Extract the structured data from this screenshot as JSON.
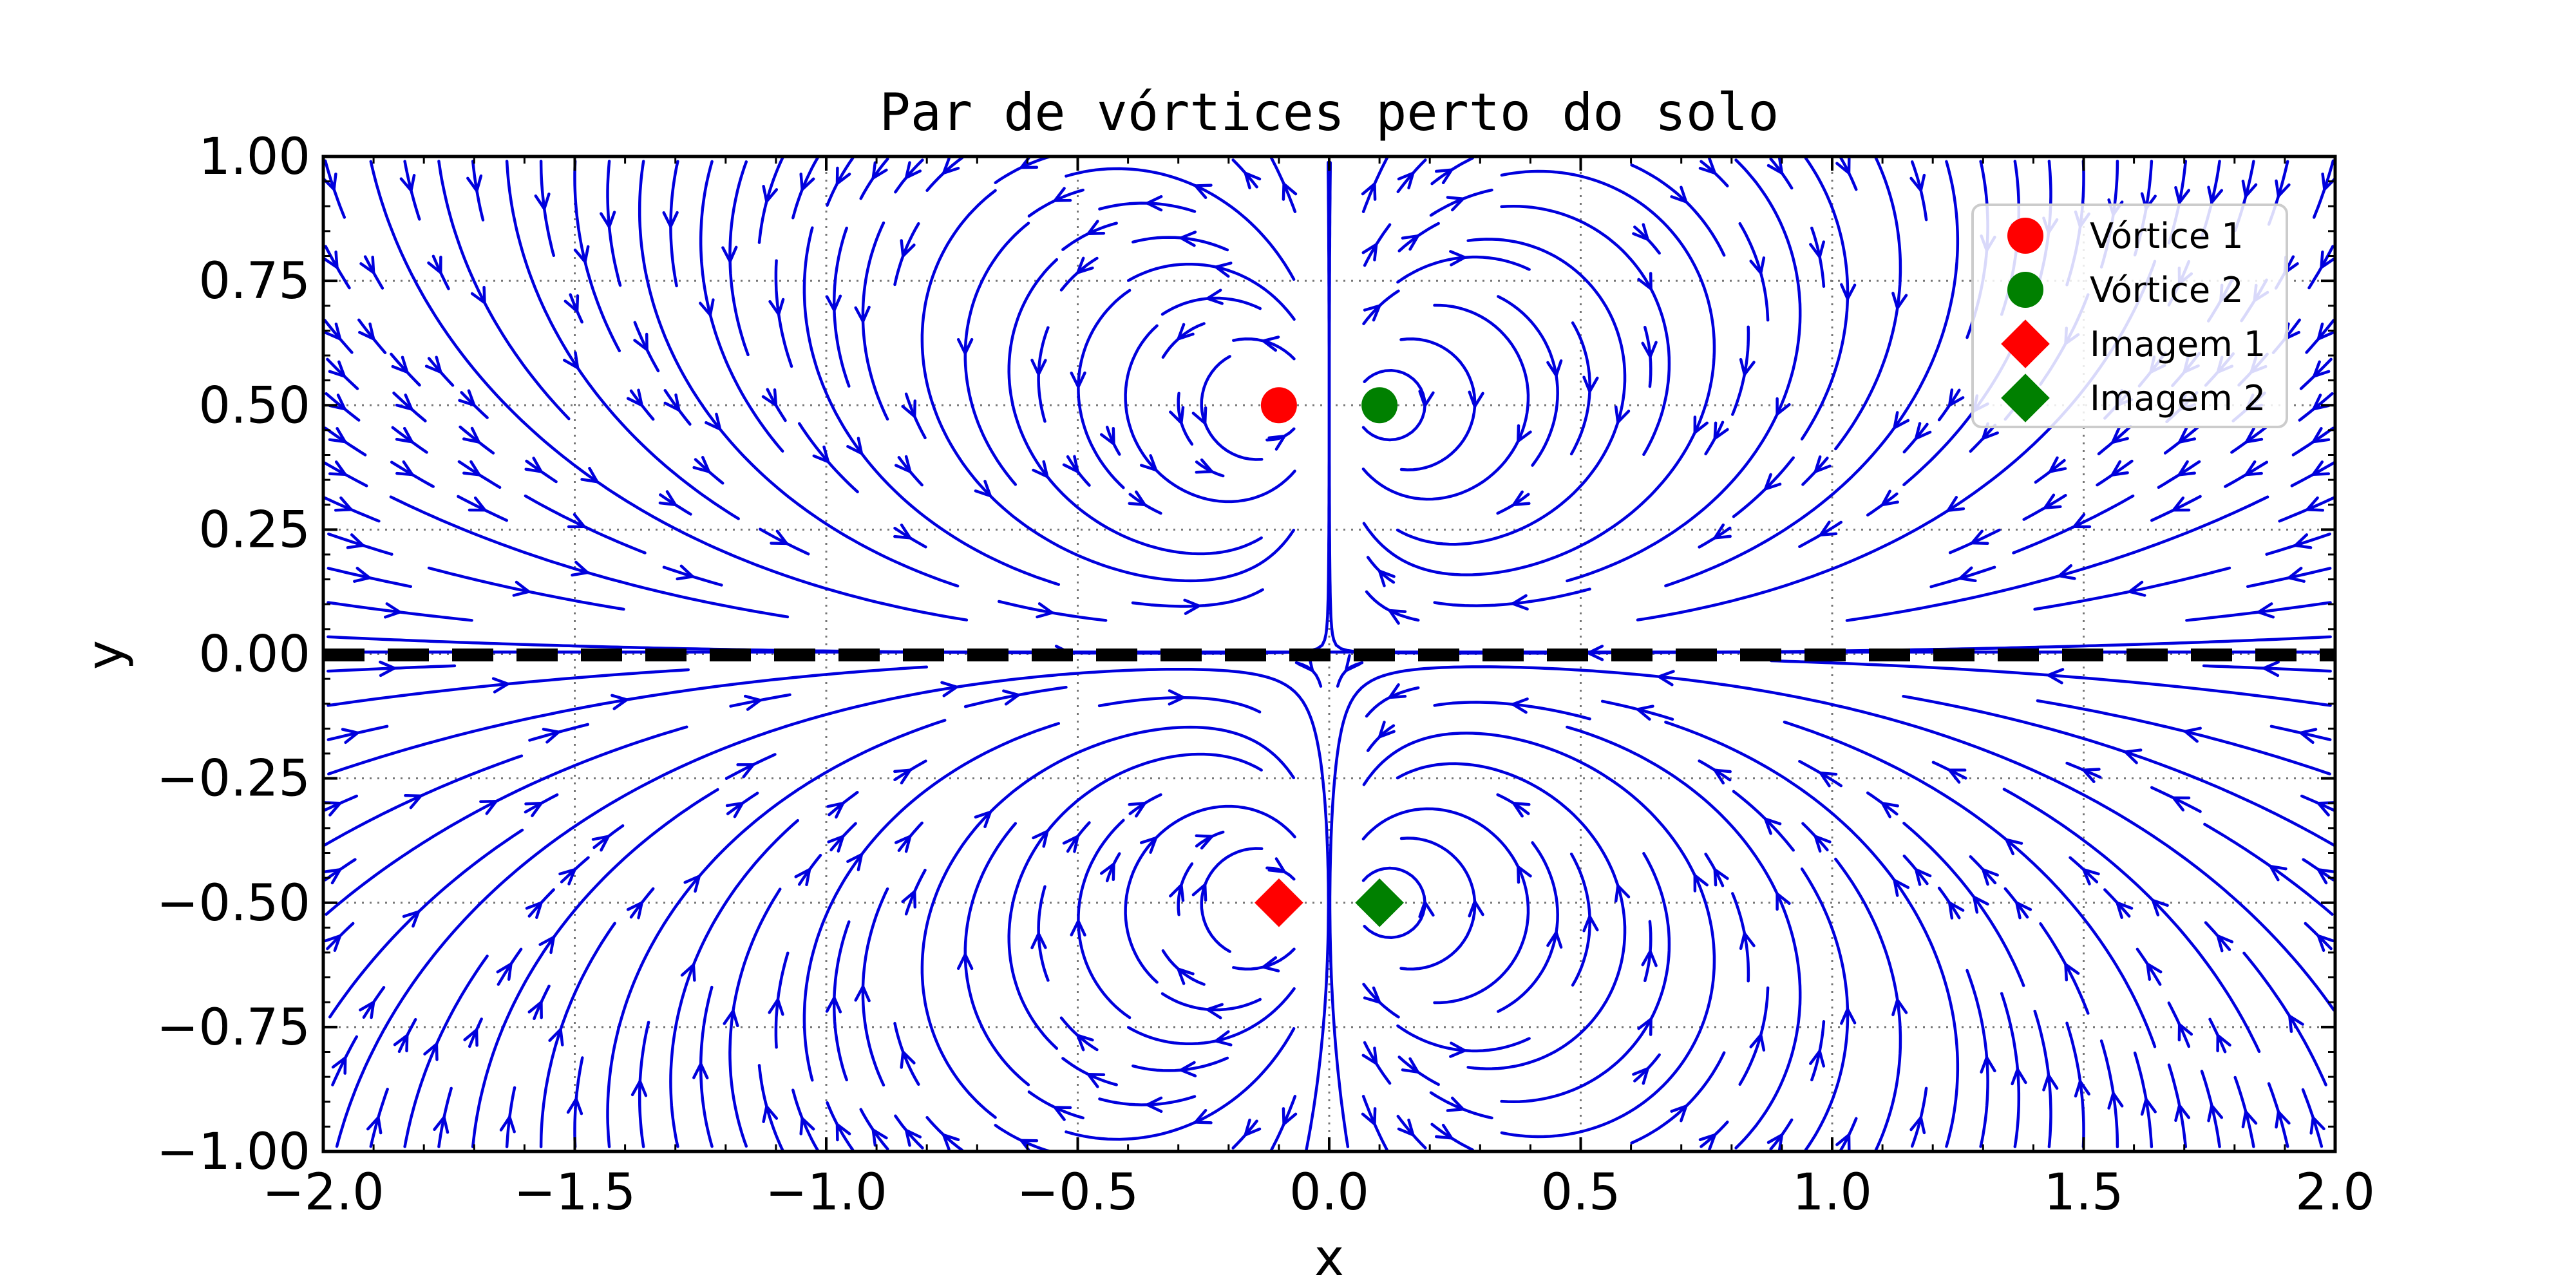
{
  "chart_data": {
    "type": "streamplot",
    "title": "Par de vórtices perto do solo",
    "xlabel": "x",
    "ylabel": "y",
    "xlim": [
      -2.0,
      2.0
    ],
    "ylim": [
      -1.0,
      1.0
    ],
    "x_ticks": [
      "−2.0",
      "−1.5",
      "−1.0",
      "−0.5",
      "0.0",
      "0.5",
      "1.0",
      "1.5",
      "2.0"
    ],
    "y_ticks": [
      "−1.00",
      "−0.75",
      "−0.50",
      "−0.25",
      "0.00",
      "0.25",
      "0.50",
      "0.75",
      "1.00"
    ],
    "x_tick_values": [
      -2.0,
      -1.5,
      -1.0,
      -0.5,
      0.0,
      0.5,
      1.0,
      1.5,
      2.0
    ],
    "y_tick_values": [
      -1.0,
      -0.75,
      -0.5,
      -0.25,
      0.0,
      0.25,
      0.5,
      0.75,
      1.0
    ],
    "grid": true,
    "ground_line": {
      "y": 0.0,
      "style": "dashed",
      "color": "#000000"
    },
    "stream_color": "#0000dd",
    "vortices": [
      {
        "name": "Vórtice 1",
        "x": -0.1,
        "y": 0.5,
        "marker": "circle",
        "color": "#ff0000",
        "gamma": 1
      },
      {
        "name": "Vórtice 2",
        "x": 0.1,
        "y": 0.5,
        "marker": "circle",
        "color": "#008000",
        "gamma": -1
      },
      {
        "name": "Imagem 1",
        "x": -0.1,
        "y": -0.5,
        "marker": "diamond",
        "color": "#ff0000",
        "gamma": -1
      },
      {
        "name": "Imagem 2",
        "x": 0.1,
        "y": -0.5,
        "marker": "diamond",
        "color": "#008000",
        "gamma": 1
      }
    ],
    "legend": {
      "placement": "top-right",
      "entries": [
        {
          "label": "Vórtice 1",
          "marker": "circle",
          "color": "#ff0000"
        },
        {
          "label": "Vórtice 2",
          "marker": "circle",
          "color": "#008000"
        },
        {
          "label": "Imagem 1",
          "marker": "diamond",
          "color": "#ff0000"
        },
        {
          "label": "Imagem 2",
          "marker": "diamond",
          "color": "#008000"
        }
      ]
    }
  }
}
